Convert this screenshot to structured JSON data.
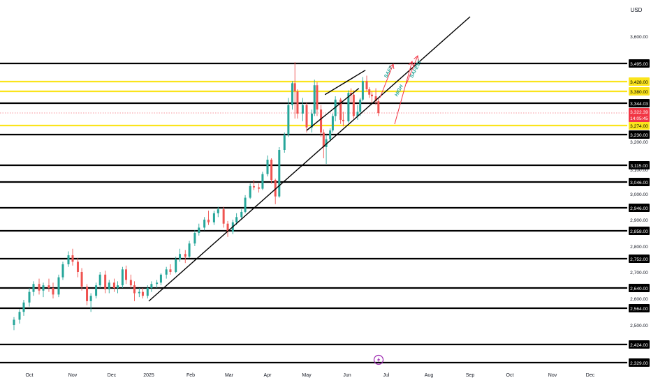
{
  "currency_label": "USD",
  "lightning_icon_color": "#9c27b0",
  "chart_data": {
    "type": "candlestick",
    "title": "",
    "x_axis": {
      "labels": [
        "Oct",
        "Nov",
        "Dec",
        "2025",
        "Feb",
        "Mar",
        "Apr",
        "May",
        "Jun",
        "Jul",
        "Aug",
        "Sep",
        "Oct",
        "Nov",
        "Dec"
      ],
      "dates": [
        "2024-10-01",
        "2024-11-01",
        "2024-12-01",
        "2025-01-01",
        "2025-02-01",
        "2025-03-01",
        "2025-04-01",
        "2025-05-01",
        "2025-06-01",
        "2025-07-01",
        "2025-08-01",
        "2025-09-01",
        "2025-10-01",
        "2025-11-01",
        "2025-12-01"
      ]
    },
    "y_axis": {
      "ticks": [
        2500,
        2600,
        2700,
        2800,
        2900,
        3000,
        3100,
        3200,
        3300,
        3600
      ],
      "tick_labels": [
        "2,500.00",
        "2,600.00",
        "2,700.00",
        "2,800.00",
        "2,900.00",
        "3,000.00",
        "3,100.00",
        "3,200.00",
        "3,300.00",
        "3,600.00"
      ],
      "range": [
        2329,
        3700
      ]
    },
    "levels": [
      {
        "value": 3495,
        "label": "3,495.00",
        "color": "#000000"
      },
      {
        "value": 3428,
        "label": "3,428.00",
        "color": "#fbe41c"
      },
      {
        "value": 3380,
        "label": "3,380.00",
        "color": "#fbe41c"
      },
      {
        "value": 3344.03,
        "label": "3,344.03",
        "color": "#000000"
      },
      {
        "value": 3274,
        "label": "3,274.00",
        "color": "#fbe41c"
      },
      {
        "value": 3230,
        "label": "3,230.00",
        "color": "#000000"
      },
      {
        "value": 3115,
        "label": "3,115.00",
        "color": "#000000"
      },
      {
        "value": 3046,
        "label": "3,046.00",
        "color": "#000000"
      },
      {
        "value": 2946,
        "label": "2,946.00",
        "color": "#000000"
      },
      {
        "value": 2858,
        "label": "2,858.00",
        "color": "#000000"
      },
      {
        "value": 2752,
        "label": "2,752.00",
        "color": "#000000"
      },
      {
        "value": 2640,
        "label": "2,640.00",
        "color": "#000000"
      },
      {
        "value": 2564,
        "label": "2,564.00",
        "color": "#000000"
      },
      {
        "value": 2424,
        "label": "2,424.00",
        "color": "#000000"
      },
      {
        "value": 2329,
        "label": "2,329.00",
        "color": "#000000"
      }
    ],
    "current_price": {
      "value": 3322.39,
      "label": "3,322.39",
      "countdown": "14:05:45",
      "color": "#f23645"
    },
    "trendlines": [
      {
        "name": "main-uptrend",
        "start": [
          "2025-01-01",
          2590
        ],
        "end": [
          "2025-09-01",
          3700
        ]
      },
      {
        "name": "channel-lower",
        "start": [
          "2025-05-01",
          3250
        ],
        "end": [
          "2025-06-10",
          3395
        ]
      },
      {
        "name": "channel-upper",
        "start": [
          "2025-05-15",
          3370
        ],
        "end": [
          "2025-06-15",
          3470
        ]
      }
    ],
    "annotations": [
      {
        "text": "SAFE",
        "color": "#26a69a"
      },
      {
        "text": "HIGH",
        "color": "#26a69a"
      },
      {
        "text": "SAFEST",
        "color": "#26a69a"
      }
    ],
    "arrow_color": "#f23645",
    "up_color": "#26a69a",
    "down_color": "#ef5350",
    "ohlc": [
      {
        "date": "2024-09-20",
        "o": 2500,
        "h": 2530,
        "l": 2480,
        "c": 2520
      },
      {
        "date": "2024-09-24",
        "o": 2520,
        "h": 2560,
        "l": 2505,
        "c": 2550
      },
      {
        "date": "2024-09-27",
        "o": 2550,
        "h": 2595,
        "l": 2535,
        "c": 2585
      },
      {
        "date": "2024-10-01",
        "o": 2585,
        "h": 2640,
        "l": 2570,
        "c": 2625
      },
      {
        "date": "2024-10-04",
        "o": 2625,
        "h": 2665,
        "l": 2610,
        "c": 2655
      },
      {
        "date": "2024-10-08",
        "o": 2655,
        "h": 2675,
        "l": 2615,
        "c": 2630
      },
      {
        "date": "2024-10-11",
        "o": 2630,
        "h": 2660,
        "l": 2605,
        "c": 2650
      },
      {
        "date": "2024-10-15",
        "o": 2650,
        "h": 2675,
        "l": 2625,
        "c": 2640
      },
      {
        "date": "2024-10-18",
        "o": 2640,
        "h": 2660,
        "l": 2600,
        "c": 2615
      },
      {
        "date": "2024-10-22",
        "o": 2615,
        "h": 2690,
        "l": 2605,
        "c": 2680
      },
      {
        "date": "2024-10-25",
        "o": 2680,
        "h": 2740,
        "l": 2670,
        "c": 2730
      },
      {
        "date": "2024-10-29",
        "o": 2730,
        "h": 2780,
        "l": 2720,
        "c": 2765
      },
      {
        "date": "2024-11-01",
        "o": 2765,
        "h": 2790,
        "l": 2725,
        "c": 2740
      },
      {
        "date": "2024-11-05",
        "o": 2740,
        "h": 2755,
        "l": 2680,
        "c": 2700
      },
      {
        "date": "2024-11-08",
        "o": 2700,
        "h": 2715,
        "l": 2630,
        "c": 2645
      },
      {
        "date": "2024-11-12",
        "o": 2645,
        "h": 2655,
        "l": 2575,
        "c": 2590
      },
      {
        "date": "2024-11-15",
        "o": 2590,
        "h": 2620,
        "l": 2550,
        "c": 2610
      },
      {
        "date": "2024-11-19",
        "o": 2610,
        "h": 2660,
        "l": 2600,
        "c": 2650
      },
      {
        "date": "2024-11-22",
        "o": 2650,
        "h": 2700,
        "l": 2640,
        "c": 2690
      },
      {
        "date": "2024-11-26",
        "o": 2690,
        "h": 2705,
        "l": 2620,
        "c": 2635
      },
      {
        "date": "2024-11-29",
        "o": 2635,
        "h": 2670,
        "l": 2620,
        "c": 2660
      },
      {
        "date": "2024-12-03",
        "o": 2660,
        "h": 2675,
        "l": 2625,
        "c": 2640
      },
      {
        "date": "2024-12-06",
        "o": 2640,
        "h": 2665,
        "l": 2620,
        "c": 2650
      },
      {
        "date": "2024-12-10",
        "o": 2650,
        "h": 2720,
        "l": 2640,
        "c": 2710
      },
      {
        "date": "2024-12-13",
        "o": 2710,
        "h": 2725,
        "l": 2655,
        "c": 2670
      },
      {
        "date": "2024-12-17",
        "o": 2670,
        "h": 2690,
        "l": 2640,
        "c": 2650
      },
      {
        "date": "2024-12-20",
        "o": 2650,
        "h": 2665,
        "l": 2590,
        "c": 2620
      },
      {
        "date": "2024-12-24",
        "o": 2620,
        "h": 2640,
        "l": 2605,
        "c": 2625
      },
      {
        "date": "2024-12-27",
        "o": 2625,
        "h": 2640,
        "l": 2600,
        "c": 2610
      },
      {
        "date": "2024-12-31",
        "o": 2610,
        "h": 2650,
        "l": 2600,
        "c": 2640
      },
      {
        "date": "2025-01-03",
        "o": 2640,
        "h": 2665,
        "l": 2625,
        "c": 2655
      },
      {
        "date": "2025-01-07",
        "o": 2655,
        "h": 2670,
        "l": 2640,
        "c": 2660
      },
      {
        "date": "2025-01-10",
        "o": 2660,
        "h": 2695,
        "l": 2650,
        "c": 2690
      },
      {
        "date": "2025-01-14",
        "o": 2690,
        "h": 2720,
        "l": 2675,
        "c": 2710
      },
      {
        "date": "2025-01-17",
        "o": 2710,
        "h": 2730,
        "l": 2690,
        "c": 2700
      },
      {
        "date": "2025-01-21",
        "o": 2700,
        "h": 2760,
        "l": 2695,
        "c": 2750
      },
      {
        "date": "2025-01-24",
        "o": 2750,
        "h": 2790,
        "l": 2740,
        "c": 2770
      },
      {
        "date": "2025-01-28",
        "o": 2770,
        "h": 2785,
        "l": 2735,
        "c": 2760
      },
      {
        "date": "2025-01-31",
        "o": 2760,
        "h": 2820,
        "l": 2755,
        "c": 2810
      },
      {
        "date": "2025-02-04",
        "o": 2810,
        "h": 2860,
        "l": 2800,
        "c": 2850
      },
      {
        "date": "2025-02-07",
        "o": 2850,
        "h": 2885,
        "l": 2840,
        "c": 2870
      },
      {
        "date": "2025-02-11",
        "o": 2870,
        "h": 2910,
        "l": 2860,
        "c": 2900
      },
      {
        "date": "2025-02-14",
        "o": 2900,
        "h": 2935,
        "l": 2880,
        "c": 2890
      },
      {
        "date": "2025-02-18",
        "o": 2890,
        "h": 2935,
        "l": 2880,
        "c": 2925
      },
      {
        "date": "2025-02-21",
        "o": 2925,
        "h": 2950,
        "l": 2910,
        "c": 2940
      },
      {
        "date": "2025-02-25",
        "o": 2940,
        "h": 2950,
        "l": 2870,
        "c": 2885
      },
      {
        "date": "2025-02-28",
        "o": 2885,
        "h": 2895,
        "l": 2835,
        "c": 2855
      },
      {
        "date": "2025-03-04",
        "o": 2855,
        "h": 2900,
        "l": 2845,
        "c": 2890
      },
      {
        "date": "2025-03-07",
        "o": 2890,
        "h": 2925,
        "l": 2880,
        "c": 2910
      },
      {
        "date": "2025-03-11",
        "o": 2910,
        "h": 2940,
        "l": 2900,
        "c": 2930
      },
      {
        "date": "2025-03-14",
        "o": 2930,
        "h": 2995,
        "l": 2925,
        "c": 2985
      },
      {
        "date": "2025-03-18",
        "o": 2985,
        "h": 3040,
        "l": 2980,
        "c": 3030
      },
      {
        "date": "2025-03-21",
        "o": 3030,
        "h": 3055,
        "l": 3015,
        "c": 3025
      },
      {
        "date": "2025-03-25",
        "o": 3025,
        "h": 3040,
        "l": 3005,
        "c": 3020
      },
      {
        "date": "2025-03-28",
        "o": 3020,
        "h": 3090,
        "l": 3015,
        "c": 3080
      },
      {
        "date": "2025-04-01",
        "o": 3080,
        "h": 3150,
        "l": 3070,
        "c": 3135
      },
      {
        "date": "2025-04-04",
        "o": 3135,
        "h": 3140,
        "l": 3040,
        "c": 3055
      },
      {
        "date": "2025-04-07",
        "o": 3055,
        "h": 3060,
        "l": 2960,
        "c": 2990
      },
      {
        "date": "2025-04-10",
        "o": 2990,
        "h": 3180,
        "l": 2985,
        "c": 3170
      },
      {
        "date": "2025-04-14",
        "o": 3170,
        "h": 3240,
        "l": 3160,
        "c": 3230
      },
      {
        "date": "2025-04-17",
        "o": 3230,
        "h": 3360,
        "l": 3220,
        "c": 3340
      },
      {
        "date": "2025-04-20",
        "o": 3340,
        "h": 3430,
        "l": 3330,
        "c": 3420
      },
      {
        "date": "2025-04-22",
        "o": 3420,
        "h": 3500,
        "l": 3300,
        "c": 3380
      },
      {
        "date": "2025-04-24",
        "o": 3380,
        "h": 3390,
        "l": 3300,
        "c": 3320
      },
      {
        "date": "2025-04-28",
        "o": 3320,
        "h": 3360,
        "l": 3290,
        "c": 3340
      },
      {
        "date": "2025-05-01",
        "o": 3340,
        "h": 3345,
        "l": 3240,
        "c": 3265
      },
      {
        "date": "2025-05-05",
        "o": 3265,
        "h": 3330,
        "l": 3240,
        "c": 3320
      },
      {
        "date": "2025-05-07",
        "o": 3320,
        "h": 3435,
        "l": 3310,
        "c": 3410
      },
      {
        "date": "2025-05-09",
        "o": 3410,
        "h": 3425,
        "l": 3310,
        "c": 3330
      },
      {
        "date": "2025-05-12",
        "o": 3330,
        "h": 3340,
        "l": 3220,
        "c": 3240
      },
      {
        "date": "2025-05-14",
        "o": 3240,
        "h": 3255,
        "l": 3140,
        "c": 3180
      },
      {
        "date": "2025-05-16",
        "o": 3180,
        "h": 3230,
        "l": 3120,
        "c": 3210
      },
      {
        "date": "2025-05-19",
        "o": 3210,
        "h": 3260,
        "l": 3200,
        "c": 3250
      },
      {
        "date": "2025-05-21",
        "o": 3250,
        "h": 3320,
        "l": 3240,
        "c": 3310
      },
      {
        "date": "2025-05-23",
        "o": 3310,
        "h": 3365,
        "l": 3290,
        "c": 3355
      },
      {
        "date": "2025-05-27",
        "o": 3355,
        "h": 3360,
        "l": 3280,
        "c": 3295
      },
      {
        "date": "2025-05-29",
        "o": 3295,
        "h": 3325,
        "l": 3270,
        "c": 3290
      },
      {
        "date": "2025-06-02",
        "o": 3290,
        "h": 3385,
        "l": 3285,
        "c": 3375
      },
      {
        "date": "2025-06-04",
        "o": 3375,
        "h": 3395,
        "l": 3345,
        "c": 3370
      },
      {
        "date": "2025-06-06",
        "o": 3370,
        "h": 3385,
        "l": 3300,
        "c": 3310
      },
      {
        "date": "2025-06-09",
        "o": 3310,
        "h": 3340,
        "l": 3295,
        "c": 3325
      },
      {
        "date": "2025-06-11",
        "o": 3325,
        "h": 3360,
        "l": 3310,
        "c": 3355
      },
      {
        "date": "2025-06-13",
        "o": 3355,
        "h": 3445,
        "l": 3350,
        "c": 3430
      },
      {
        "date": "2025-06-16",
        "o": 3430,
        "h": 3450,
        "l": 3380,
        "c": 3390
      },
      {
        "date": "2025-06-18",
        "o": 3390,
        "h": 3400,
        "l": 3360,
        "c": 3370
      },
      {
        "date": "2025-06-20",
        "o": 3370,
        "h": 3380,
        "l": 3345,
        "c": 3365
      },
      {
        "date": "2025-06-23",
        "o": 3365,
        "h": 3395,
        "l": 3340,
        "c": 3350
      },
      {
        "date": "2025-06-25",
        "o": 3350,
        "h": 3360,
        "l": 3310,
        "c": 3322.39
      }
    ]
  }
}
